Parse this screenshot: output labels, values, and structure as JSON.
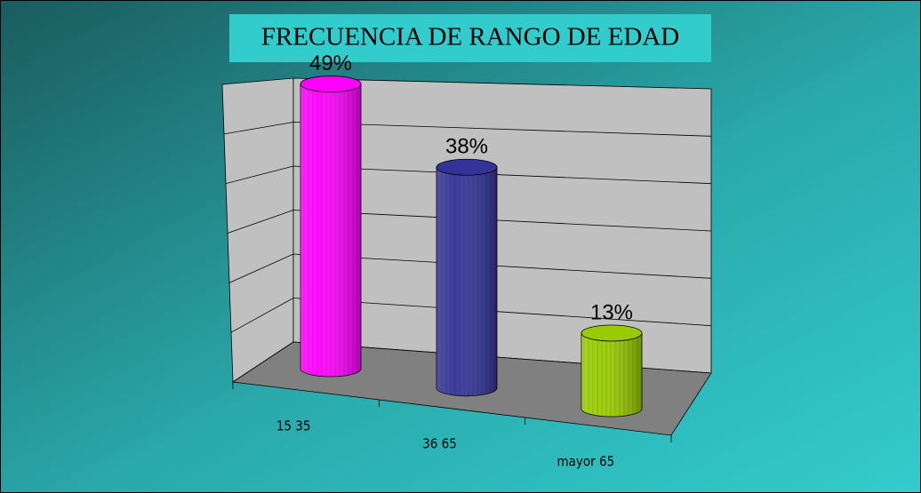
{
  "chart_data": {
    "type": "bar",
    "title": "FRECUENCIA DE RANGO DE EDAD",
    "categories": [
      "15 35",
      "36 65",
      "mayor 65"
    ],
    "values": [
      49,
      38,
      13
    ],
    "value_labels": [
      "49%",
      "38%",
      "13%"
    ],
    "colors": [
      "#ff00ff",
      "#333399",
      "#99cc00"
    ],
    "ylim": [
      0,
      50
    ]
  }
}
